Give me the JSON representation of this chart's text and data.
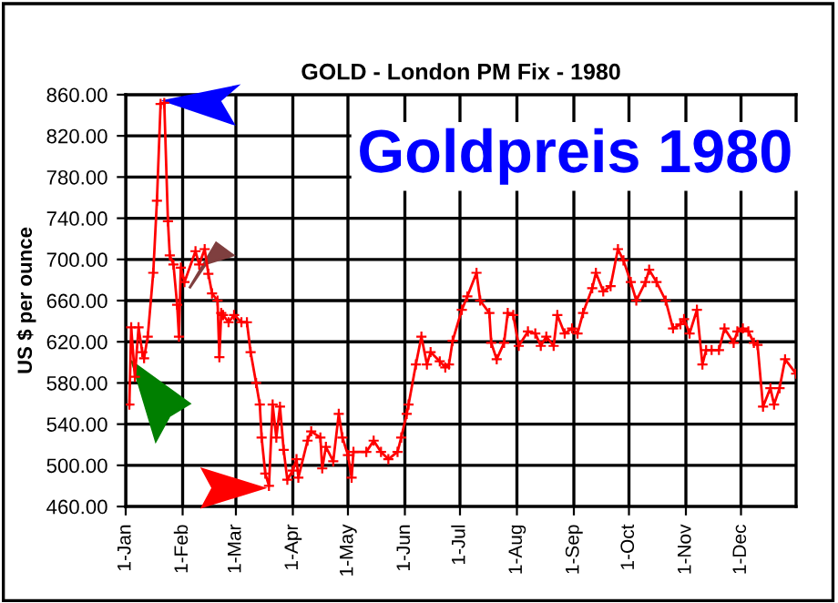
{
  "chart_data": {
    "type": "line",
    "title": "GOLD - London PM Fix - 1980",
    "ylabel": "US $ per ounce",
    "annotations": [
      "Goldpreis 1980"
    ],
    "x": [
      "1980-01-03",
      "1980-01-04",
      "1980-01-06",
      "1980-01-08",
      "1980-01-10",
      "1980-01-11",
      "1980-01-13",
      "1980-01-16",
      "1980-01-18",
      "1980-01-20",
      "1980-01-22",
      "1980-01-24",
      "1980-01-25",
      "1980-01-27",
      "1980-01-29",
      "1980-01-30",
      "1980-01-31",
      "1980-02-02",
      "1980-02-08",
      "1980-02-10",
      "1980-02-13",
      "1980-02-15",
      "1980-02-17",
      "1980-02-20",
      "1980-02-21",
      "1980-02-22",
      "1980-02-23",
      "1980-02-26",
      "1980-02-29",
      "1980-03-04",
      "1980-03-07",
      "1980-03-09",
      "1980-03-12",
      "1980-03-14",
      "1980-03-15",
      "1980-03-17",
      "1980-03-19",
      "1980-03-21",
      "1980-03-23",
      "1980-03-25",
      "1980-03-27",
      "1980-03-29",
      "1980-04-01",
      "1980-04-03",
      "1980-04-04",
      "1980-04-09",
      "1980-04-11",
      "1980-04-16",
      "1980-04-17",
      "1980-04-19",
      "1980-04-23",
      "1980-04-26",
      "1980-04-28",
      "1980-05-01",
      "1980-05-03",
      "1980-05-04",
      "1980-05-11",
      "1980-05-15",
      "1980-05-19",
      "1980-05-23",
      "1980-05-28",
      "1980-05-30",
      "1980-06-02",
      "1980-06-03",
      "1980-06-07",
      "1980-06-10",
      "1980-06-13",
      "1980-06-15",
      "1980-06-20",
      "1980-06-23",
      "1980-06-25",
      "1980-06-27",
      "1980-07-02",
      "1980-07-05",
      "1980-07-10",
      "1980-07-12",
      "1980-07-17",
      "1980-07-18",
      "1980-07-21",
      "1980-07-25",
      "1980-07-27",
      "1980-07-30",
      "1980-08-02",
      "1980-08-07",
      "1980-08-11",
      "1980-08-14",
      "1980-08-17",
      "1980-08-21",
      "1980-08-23",
      "1980-08-27",
      "1980-08-31",
      "1980-09-03",
      "1980-09-06",
      "1980-09-11",
      "1980-09-13",
      "1980-09-17",
      "1980-09-21",
      "1980-09-25",
      "1980-09-28",
      "1980-10-02",
      "1980-10-05",
      "1980-10-10",
      "1980-10-12",
      "1980-10-16",
      "1980-10-21",
      "1980-10-25",
      "1980-10-29",
      "1980-10-31",
      "1980-11-03",
      "1980-11-07",
      "1980-11-10",
      "1980-11-12",
      "1980-11-15",
      "1980-11-19",
      "1980-11-22",
      "1980-11-27",
      "1980-11-29",
      "1980-12-02",
      "1980-12-05",
      "1980-12-08",
      "1980-12-10",
      "1980-12-13",
      "1980-12-17",
      "1980-12-19",
      "1980-12-22",
      "1980-12-25",
      "1980-12-31"
    ],
    "series": [
      {
        "color": "#ff0000",
        "values": [
          559,
          634,
          586,
          634,
          610,
          604,
          625,
          687,
          757,
          851,
          852,
          737,
          704,
          695,
          656,
          625,
          692,
          678,
          708,
          695,
          710,
          686,
          667,
          660,
          605,
          648,
          646,
          639,
          646,
          639,
          639,
          610,
          580,
          559,
          527,
          492,
          480,
          559,
          527,
          557,
          515,
          486,
          495,
          506,
          488,
          524,
          533,
          527,
          497,
          518,
          504,
          550,
          527,
          510,
          488,
          513,
          513,
          524,
          513,
          506,
          513,
          527,
          550,
          559,
          598,
          625,
          598,
          610,
          601,
          595,
          598,
          621,
          651,
          664,
          687,
          660,
          648,
          619,
          603,
          619,
          648,
          646,
          616,
          630,
          628,
          616,
          625,
          616,
          646,
          628,
          633,
          628,
          648,
          672,
          687,
          669,
          674,
          710,
          699,
          678,
          660,
          678,
          690,
          678,
          660,
          633,
          637,
          642,
          628,
          651,
          598,
          612,
          612,
          612,
          633,
          619,
          630,
          633,
          630,
          619,
          617,
          557,
          575,
          559,
          575,
          603,
          589
        ]
      }
    ],
    "xlim": [
      "1980-01-01",
      "1980-12-31"
    ],
    "xticks": [
      {
        "value": "1980-01-01",
        "label": "1-Jan"
      },
      {
        "value": "1980-02-01",
        "label": "1-Feb"
      },
      {
        "value": "1980-03-01",
        "label": "1-Mar"
      },
      {
        "value": "1980-04-01",
        "label": "1-Apr"
      },
      {
        "value": "1980-05-01",
        "label": "1-May"
      },
      {
        "value": "1980-06-01",
        "label": "1-Jun"
      },
      {
        "value": "1980-07-01",
        "label": "1-Jul"
      },
      {
        "value": "1980-08-01",
        "label": "1-Aug"
      },
      {
        "value": "1980-09-01",
        "label": "1-Sep"
      },
      {
        "value": "1980-10-01",
        "label": "1-Oct"
      },
      {
        "value": "1980-11-01",
        "label": "1-Nov"
      },
      {
        "value": "1980-12-01",
        "label": "1-Dec"
      }
    ],
    "ylim": [
      460,
      860
    ],
    "yticks": [
      {
        "value": 460,
        "label": "460.00"
      },
      {
        "value": 500,
        "label": "500.00"
      },
      {
        "value": 540,
        "label": "540.00"
      },
      {
        "value": 580,
        "label": "580.00"
      },
      {
        "value": 620,
        "label": "620.00"
      },
      {
        "value": 660,
        "label": "660.00"
      },
      {
        "value": 700,
        "label": "700.00"
      },
      {
        "value": 740,
        "label": "740.00"
      },
      {
        "value": 780,
        "label": "780.00"
      },
      {
        "value": 820,
        "label": "820.00"
      },
      {
        "value": 860,
        "label": "860.00"
      }
    ],
    "grid": true,
    "marker": "cross",
    "line_style": "solid",
    "legend": false
  }
}
